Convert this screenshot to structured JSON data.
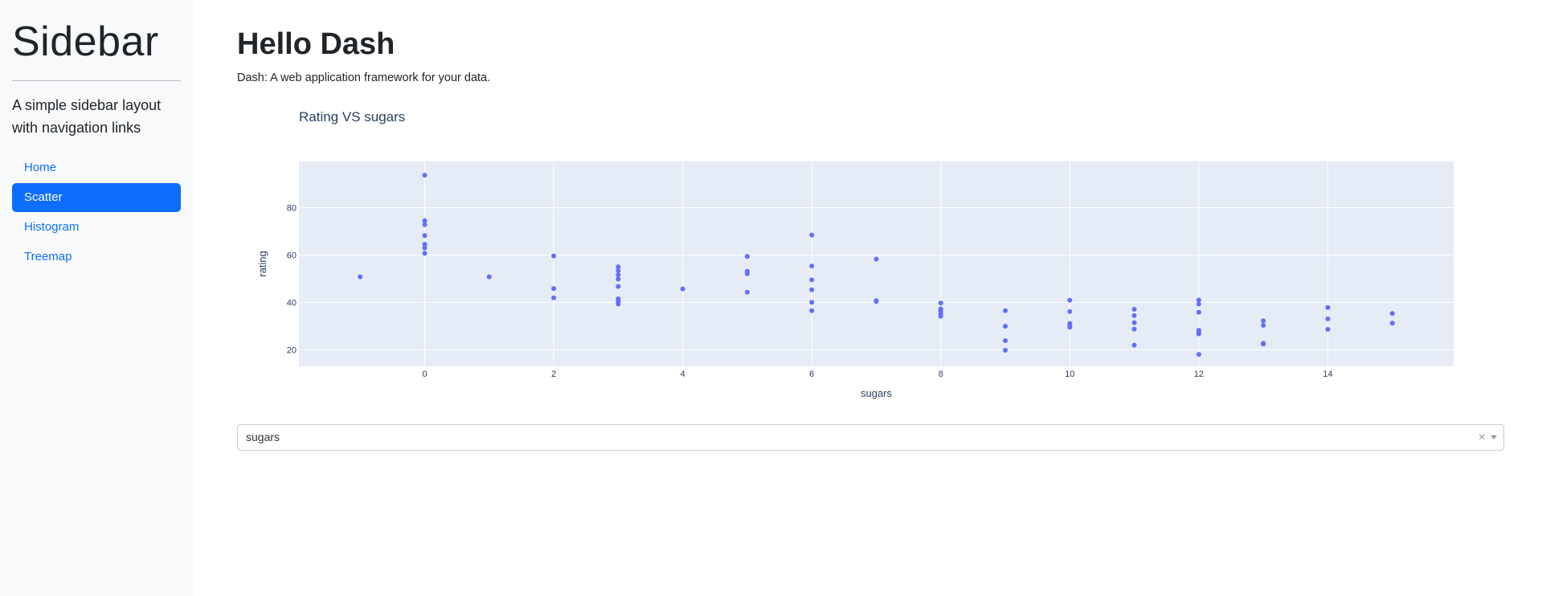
{
  "sidebar": {
    "title": "Sidebar",
    "lead": "A simple sidebar layout with navigation links",
    "items": [
      {
        "label": "Home",
        "active": false
      },
      {
        "label": "Scatter",
        "active": true
      },
      {
        "label": "Histogram",
        "active": false
      },
      {
        "label": "Treemap",
        "active": false
      }
    ]
  },
  "main": {
    "title": "Hello Dash",
    "lead": "Dash: A web application framework for your data."
  },
  "dropdown": {
    "value": "sugars",
    "clear_symbol": "×"
  },
  "colors": {
    "accent": "#0d6efd",
    "marker": "#636efa",
    "plot_bg": "#e5ecf6"
  },
  "chart_data": {
    "type": "scatter",
    "title": "Rating VS sugars",
    "xlabel": "sugars",
    "ylabel": "rating",
    "xlim": [
      -1.95,
      15.95
    ],
    "ylim": [
      13,
      99.5
    ],
    "x_ticks": [
      0,
      2,
      4,
      6,
      8,
      10,
      12,
      14
    ],
    "y_ticks": [
      20,
      40,
      60,
      80
    ],
    "grid": true,
    "points": [
      [
        -1,
        50.8
      ],
      [
        0,
        93.7
      ],
      [
        0,
        74.5
      ],
      [
        0,
        72.8
      ],
      [
        0,
        68.2
      ],
      [
        0,
        64.5
      ],
      [
        0,
        63
      ],
      [
        0,
        60.7
      ],
      [
        1,
        50.8
      ],
      [
        2,
        59.6
      ],
      [
        2,
        45.8
      ],
      [
        2,
        41.9
      ],
      [
        3,
        55
      ],
      [
        3,
        53.4
      ],
      [
        3,
        51.6
      ],
      [
        3,
        49.8
      ],
      [
        3,
        46.7
      ],
      [
        3,
        41.5
      ],
      [
        3,
        40.4
      ],
      [
        3,
        39.3
      ],
      [
        4,
        45.7
      ],
      [
        5,
        59.4
      ],
      [
        5,
        53.1
      ],
      [
        5,
        52.1
      ],
      [
        5,
        44.3
      ],
      [
        6,
        68.4
      ],
      [
        6,
        55.3
      ],
      [
        6,
        49.5
      ],
      [
        6,
        45.3
      ],
      [
        6,
        40
      ],
      [
        6,
        36.5
      ],
      [
        7,
        58.3
      ],
      [
        7,
        40.7
      ],
      [
        7,
        40.4
      ],
      [
        8,
        39.7
      ],
      [
        8,
        37.2
      ],
      [
        8,
        36.3
      ],
      [
        8,
        35.1
      ],
      [
        8,
        34.1
      ],
      [
        9,
        36.5
      ],
      [
        9,
        29.9
      ],
      [
        9,
        23.8
      ],
      [
        9,
        19.8
      ],
      [
        10,
        40.9
      ],
      [
        10,
        36.1
      ],
      [
        10,
        31.1
      ],
      [
        10,
        30.5
      ],
      [
        10,
        29.5
      ],
      [
        11,
        37.1
      ],
      [
        11,
        34.4
      ],
      [
        11,
        31.4
      ],
      [
        11,
        28.7
      ],
      [
        11,
        21.9
      ],
      [
        12,
        41
      ],
      [
        12,
        39.3
      ],
      [
        12,
        35.8
      ],
      [
        12,
        28.2
      ],
      [
        12,
        27.4
      ],
      [
        12,
        26.7
      ],
      [
        12,
        18
      ],
      [
        13,
        32.2
      ],
      [
        13,
        30.3
      ],
      [
        13,
        22.7
      ],
      [
        13,
        22.4
      ],
      [
        14,
        37.8
      ],
      [
        14,
        33
      ],
      [
        14,
        28.6
      ],
      [
        15,
        35.3
      ],
      [
        15,
        31.2
      ]
    ]
  }
}
